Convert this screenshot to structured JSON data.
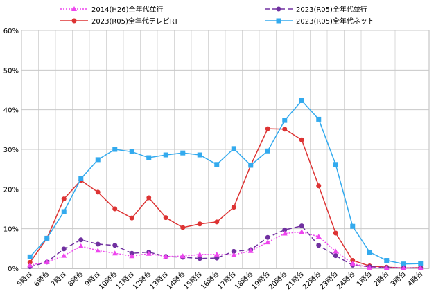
{
  "chart_data": {
    "type": "line",
    "x": [
      "5時台",
      "6時台",
      "7時台",
      "8時台",
      "9時台",
      "10時台",
      "11時台",
      "12時台",
      "13時台",
      "14時台",
      "15時台",
      "16時台",
      "17時台",
      "18時台",
      "19時台",
      "20時台",
      "21時台",
      "22時台",
      "23時台",
      "24時台",
      "1時台",
      "2時台",
      "3時台",
      "4時台"
    ],
    "ylim": [
      0,
      60
    ],
    "yticks": [
      "0%",
      "10%",
      "20%",
      "30%",
      "40%",
      "50%",
      "60%"
    ],
    "ytick_values": [
      0,
      10,
      20,
      30,
      40,
      50,
      60
    ],
    "grid": true,
    "legend_position": "top",
    "series": [
      {
        "name": "2014(H26)全年代並行",
        "color": "#ee44ee",
        "marker": "triangle",
        "dash": "dotted",
        "values": [
          0.8,
          1.6,
          3.2,
          5.6,
          4.5,
          3.8,
          3.1,
          3.7,
          3.0,
          3.1,
          3.5,
          3.5,
          3.4,
          4.4,
          6.6,
          8.8,
          9.2,
          8.0,
          4.3,
          1.2,
          0.2,
          0.1,
          0.1,
          0.1
        ]
      },
      {
        "name": "2023(R05)全年代並行",
        "color": "#7030a0",
        "marker": "circle",
        "dash": "dashed",
        "values": [
          0.4,
          1.6,
          4.9,
          7.2,
          6.1,
          5.8,
          3.8,
          4.1,
          3.0,
          2.8,
          2.5,
          2.6,
          4.3,
          4.7,
          7.8,
          9.7,
          10.7,
          5.8,
          3.2,
          0.8,
          0.4,
          0.2,
          0.1,
          0.1
        ]
      },
      {
        "name": "2023(R05)全年代テレビRT",
        "color": "#dd3333",
        "marker": "circle",
        "dash": "solid",
        "values": [
          1.5,
          7.6,
          17.5,
          22.2,
          19.2,
          15.0,
          12.7,
          17.8,
          12.8,
          10.3,
          11.2,
          11.7,
          15.4,
          26.0,
          35.2,
          35.1,
          32.4,
          20.8,
          8.9,
          2.0,
          0.6,
          0.3,
          0.1,
          0.2
        ]
      },
      {
        "name": "2023(R05)全年代ネット",
        "color": "#33aaee",
        "marker": "square",
        "dash": "solid",
        "values": [
          2.9,
          7.6,
          14.3,
          22.6,
          27.4,
          30.0,
          29.4,
          27.9,
          28.6,
          29.1,
          28.6,
          26.2,
          30.2,
          26.0,
          29.6,
          37.3,
          42.3,
          37.6,
          26.2,
          10.6,
          4.1,
          2.0,
          1.1,
          1.2
        ]
      }
    ]
  }
}
